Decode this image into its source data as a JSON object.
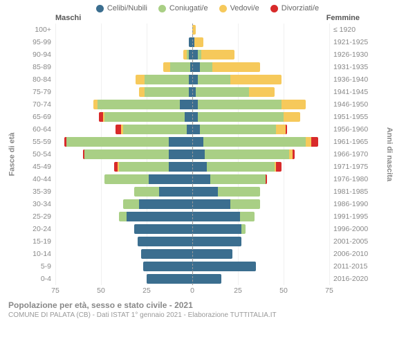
{
  "legend": [
    {
      "label": "Celibi/Nubili",
      "color": "#3b6e8f"
    },
    {
      "label": "Coniugati/e",
      "color": "#a9cf85"
    },
    {
      "label": "Vedovi/e",
      "color": "#f6c95b"
    },
    {
      "label": "Divorziati/e",
      "color": "#d82a2a"
    }
  ],
  "subheader": {
    "left": "Maschi",
    "right": "Femmine"
  },
  "axis_titles": {
    "left": "Fasce di età",
    "right": "Anni di nascita"
  },
  "xaxis": {
    "max": 75,
    "ticks": [
      75,
      50,
      25,
      0,
      25,
      50,
      75
    ]
  },
  "footer": {
    "title": "Popolazione per età, sesso e stato civile - 2021",
    "subtitle": "COMUNE DI PALATA (CB) - Dati ISTAT 1° gennaio 2021 - Elaborazione TUTTITALIA.IT"
  },
  "colors": {
    "single": "#3b6e8f",
    "married": "#a9cf85",
    "widowed": "#f6c95b",
    "divorced": "#d82a2a",
    "grid": "#f0f0f0",
    "text": "#888"
  },
  "rows": [
    {
      "age": "100+",
      "birth": "≤ 1920",
      "m": [
        0,
        0,
        0,
        0
      ],
      "f": [
        0,
        0,
        2,
        0
      ]
    },
    {
      "age": "95-99",
      "birth": "1921-1925",
      "m": [
        2,
        0,
        0,
        0
      ],
      "f": [
        1,
        0,
        5,
        0
      ]
    },
    {
      "age": "90-94",
      "birth": "1926-1930",
      "m": [
        2,
        1,
        2,
        0
      ],
      "f": [
        3,
        2,
        18,
        0
      ]
    },
    {
      "age": "85-89",
      "birth": "1931-1935",
      "m": [
        1,
        11,
        4,
        0
      ],
      "f": [
        4,
        7,
        26,
        0
      ]
    },
    {
      "age": "80-84",
      "birth": "1936-1940",
      "m": [
        2,
        24,
        5,
        0
      ],
      "f": [
        3,
        18,
        28,
        0
      ]
    },
    {
      "age": "75-79",
      "birth": "1941-1945",
      "m": [
        2,
        24,
        3,
        0
      ],
      "f": [
        2,
        29,
        14,
        0
      ]
    },
    {
      "age": "70-74",
      "birth": "1946-1950",
      "m": [
        7,
        45,
        2,
        0
      ],
      "f": [
        3,
        46,
        13,
        0
      ]
    },
    {
      "age": "65-69",
      "birth": "1951-1955",
      "m": [
        4,
        44,
        1,
        2
      ],
      "f": [
        3,
        47,
        9,
        0
      ]
    },
    {
      "age": "60-64",
      "birth": "1956-1960",
      "m": [
        3,
        35,
        1,
        3
      ],
      "f": [
        4,
        42,
        5,
        1
      ]
    },
    {
      "age": "55-59",
      "birth": "1961-1965",
      "m": [
        13,
        56,
        0,
        1
      ],
      "f": [
        6,
        56,
        3,
        4
      ]
    },
    {
      "age": "50-54",
      "birth": "1966-1970",
      "m": [
        13,
        46,
        0,
        1
      ],
      "f": [
        7,
        46,
        2,
        1
      ]
    },
    {
      "age": "45-49",
      "birth": "1971-1975",
      "m": [
        13,
        27,
        1,
        2
      ],
      "f": [
        8,
        37,
        1,
        3
      ]
    },
    {
      "age": "40-44",
      "birth": "1976-1980",
      "m": [
        24,
        24,
        0,
        0
      ],
      "f": [
        10,
        30,
        0,
        1
      ]
    },
    {
      "age": "35-39",
      "birth": "1981-1985",
      "m": [
        18,
        14,
        0,
        0
      ],
      "f": [
        14,
        23,
        0,
        0
      ]
    },
    {
      "age": "30-34",
      "birth": "1986-1990",
      "m": [
        29,
        9,
        0,
        0
      ],
      "f": [
        21,
        16,
        0,
        0
      ]
    },
    {
      "age": "25-29",
      "birth": "1991-1995",
      "m": [
        36,
        4,
        0,
        0
      ],
      "f": [
        26,
        8,
        0,
        0
      ]
    },
    {
      "age": "20-24",
      "birth": "1996-2000",
      "m": [
        32,
        0,
        0,
        0
      ],
      "f": [
        27,
        2,
        0,
        0
      ]
    },
    {
      "age": "15-19",
      "birth": "2001-2005",
      "m": [
        30,
        0,
        0,
        0
      ],
      "f": [
        27,
        0,
        0,
        0
      ]
    },
    {
      "age": "10-14",
      "birth": "2006-2010",
      "m": [
        28,
        0,
        0,
        0
      ],
      "f": [
        22,
        0,
        0,
        0
      ]
    },
    {
      "age": "5-9",
      "birth": "2011-2015",
      "m": [
        27,
        0,
        0,
        0
      ],
      "f": [
        35,
        0,
        0,
        0
      ]
    },
    {
      "age": "0-4",
      "birth": "2016-2020",
      "m": [
        25,
        0,
        0,
        0
      ],
      "f": [
        16,
        0,
        0,
        0
      ]
    }
  ]
}
